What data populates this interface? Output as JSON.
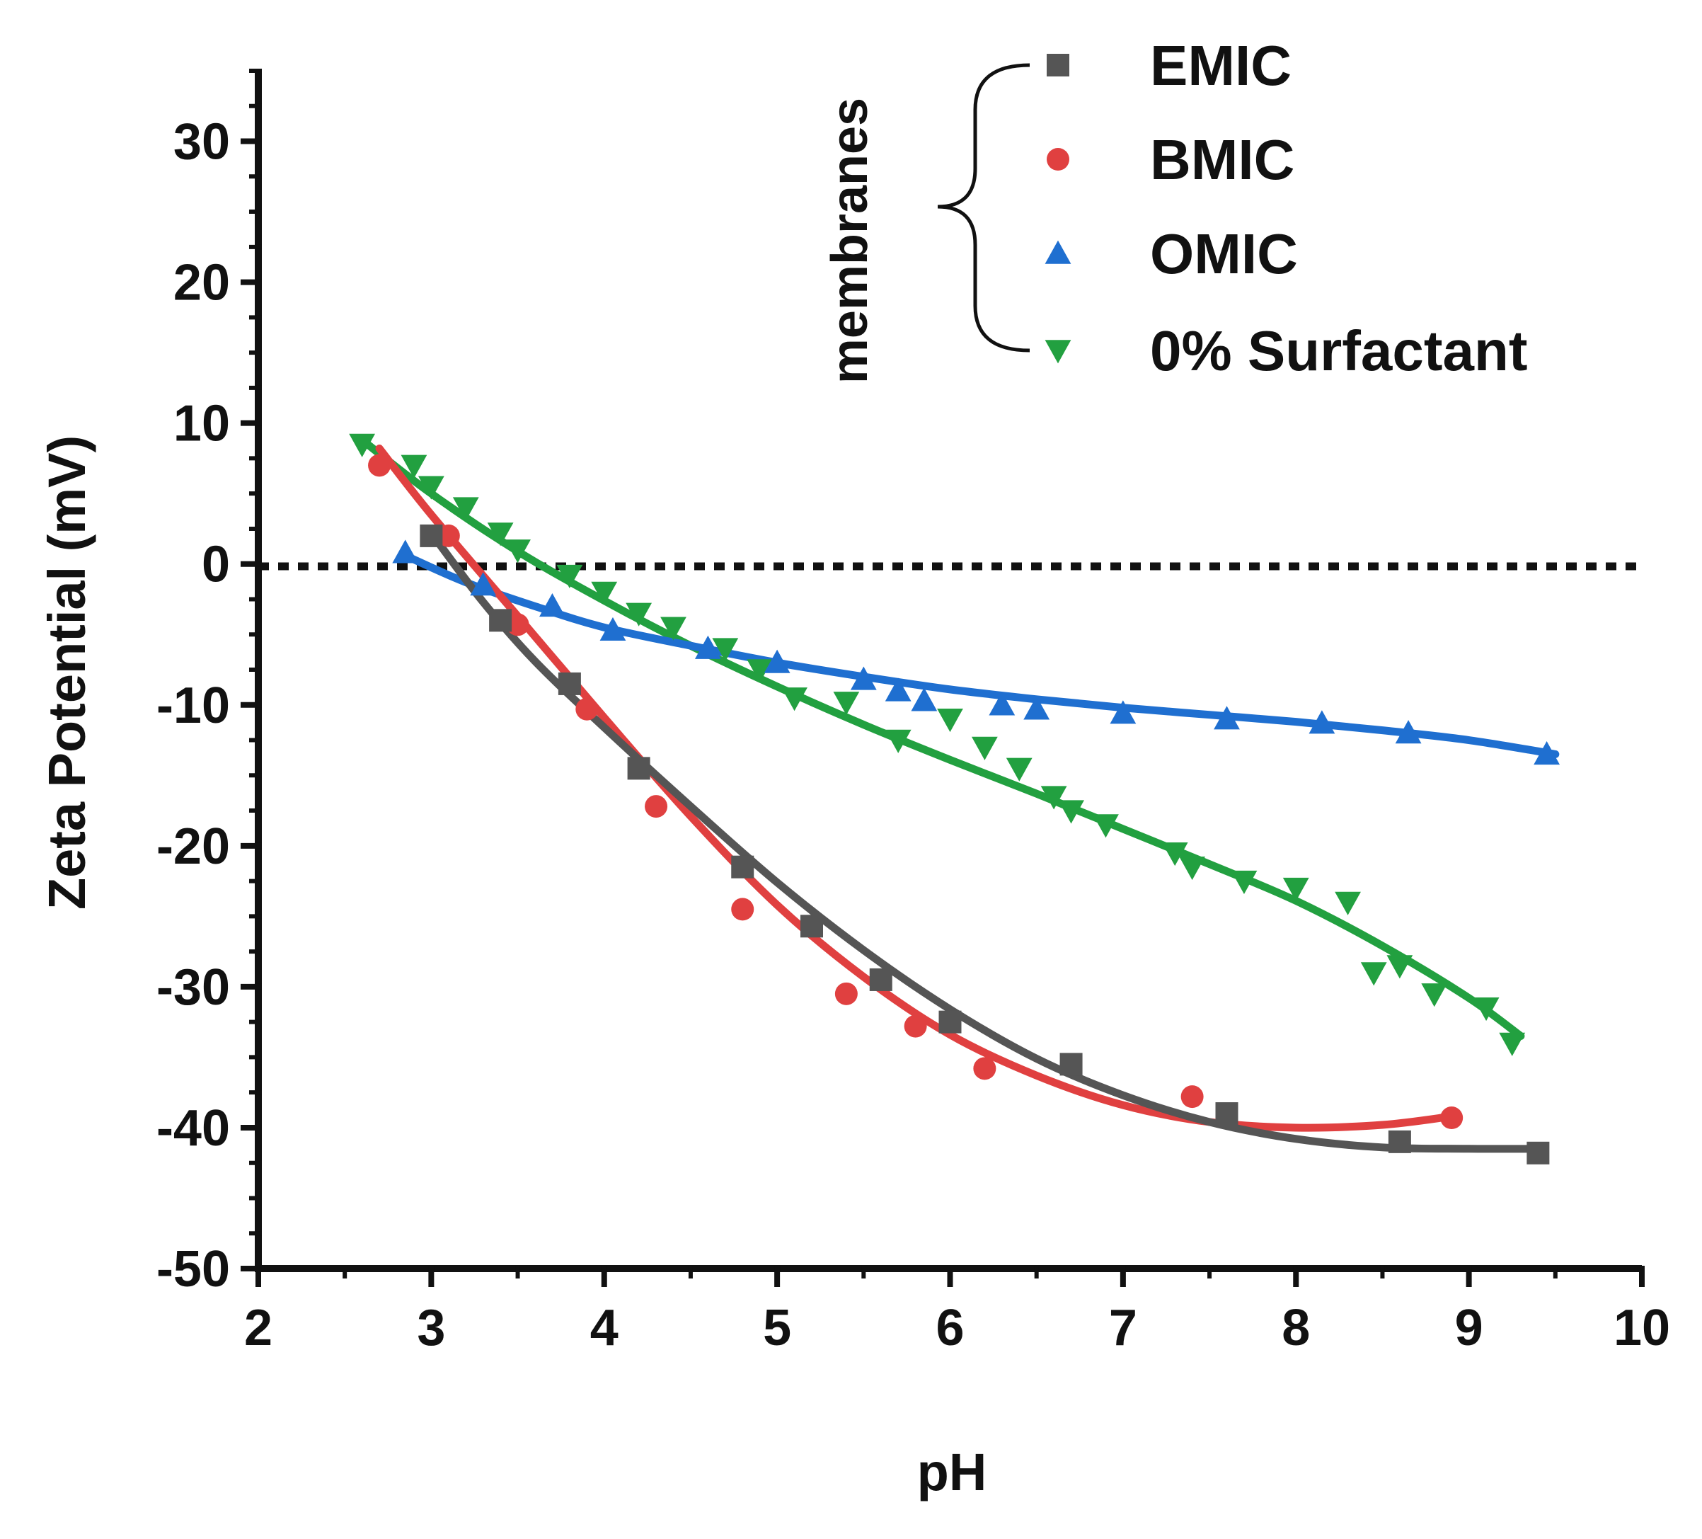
{
  "chart_data": {
    "type": "scatter",
    "title": "",
    "xlabel": "pH",
    "ylabel": "Zeta Potential (mV)",
    "xlim": [
      2,
      10
    ],
    "ylim": [
      -50,
      35
    ],
    "x_ticks": [
      2,
      3,
      4,
      5,
      6,
      7,
      8,
      9,
      10
    ],
    "x_tick_labels": [
      "2",
      "3",
      "4",
      "5",
      "6",
      "7",
      "8",
      "9",
      "10"
    ],
    "y_ticks": [
      -50,
      -40,
      -30,
      -20,
      -10,
      0,
      10,
      20,
      30
    ],
    "y_tick_labels": [
      "-50",
      "-40",
      "-30",
      "-20",
      "-10",
      "0",
      "10",
      "20",
      "30"
    ],
    "grid": false,
    "reference_line": {
      "y": 0,
      "style": "dotted"
    },
    "legend": {
      "position": "top-right",
      "group_label": "membranes",
      "group_bracket_covers": [
        "EMIC",
        "BMIC",
        "OMIC",
        "0% Surfactant"
      ]
    },
    "series": [
      {
        "name": "EMIC",
        "marker": "square",
        "color": "#555555",
        "points": [
          [
            3.0,
            2
          ],
          [
            3.4,
            -4
          ],
          [
            3.8,
            -8.5
          ],
          [
            4.2,
            -14.5
          ],
          [
            4.8,
            -21.5
          ],
          [
            5.2,
            -25.7
          ],
          [
            5.6,
            -29.5
          ],
          [
            6.0,
            -32.5
          ],
          [
            6.7,
            -35.5
          ],
          [
            7.6,
            -39
          ],
          [
            8.6,
            -41
          ],
          [
            9.4,
            -41.8
          ]
        ],
        "fit": [
          [
            3.0,
            2.2
          ],
          [
            3.3,
            -2.7
          ],
          [
            3.6,
            -6.9
          ],
          [
            4.0,
            -11.6
          ],
          [
            4.5,
            -17.2
          ],
          [
            5.0,
            -22.6
          ],
          [
            5.5,
            -27.4
          ],
          [
            6.0,
            -31.6
          ],
          [
            6.5,
            -35.1
          ],
          [
            7.0,
            -37.7
          ],
          [
            7.5,
            -39.6
          ],
          [
            8.0,
            -40.8
          ],
          [
            8.5,
            -41.4
          ],
          [
            9.0,
            -41.5
          ],
          [
            9.4,
            -41.5
          ]
        ]
      },
      {
        "name": "BMIC",
        "marker": "circle",
        "color": "#e04040",
        "points": [
          [
            2.7,
            7
          ],
          [
            3.1,
            2
          ],
          [
            3.5,
            -4.3
          ],
          [
            3.9,
            -10.3
          ],
          [
            4.3,
            -17.2
          ],
          [
            4.8,
            -24.5
          ],
          [
            5.4,
            -30.5
          ],
          [
            5.8,
            -32.8
          ],
          [
            6.2,
            -35.8
          ],
          [
            7.4,
            -37.8
          ],
          [
            8.9,
            -39.3
          ]
        ],
        "fit": [
          [
            2.7,
            8.2
          ],
          [
            3.0,
            3.5
          ],
          [
            3.5,
            -3.7
          ],
          [
            4.0,
            -10.9
          ],
          [
            4.5,
            -17.9
          ],
          [
            5.0,
            -24.2
          ],
          [
            5.5,
            -29.3
          ],
          [
            6.0,
            -33.4
          ],
          [
            6.5,
            -36.3
          ],
          [
            7.0,
            -38.4
          ],
          [
            7.5,
            -39.6
          ],
          [
            8.0,
            -40.0
          ],
          [
            8.5,
            -39.8
          ],
          [
            8.9,
            -39.2
          ]
        ]
      },
      {
        "name": "OMIC",
        "marker": "triangle-up",
        "color": "#1f6fd0",
        "points": [
          [
            2.85,
            0.8
          ],
          [
            3.3,
            -1.5
          ],
          [
            3.7,
            -3
          ],
          [
            4.05,
            -4.7
          ],
          [
            4.6,
            -6
          ],
          [
            5.0,
            -7
          ],
          [
            5.5,
            -8.2
          ],
          [
            5.7,
            -9
          ],
          [
            5.85,
            -9.7
          ],
          [
            6.3,
            -10
          ],
          [
            6.5,
            -10.3
          ],
          [
            7.0,
            -10.6
          ],
          [
            7.6,
            -11
          ],
          [
            8.15,
            -11.3
          ],
          [
            8.65,
            -12
          ],
          [
            9.45,
            -13.5
          ]
        ],
        "fit": [
          [
            2.85,
            0.6
          ],
          [
            3.2,
            -1.3
          ],
          [
            3.6,
            -3.0
          ],
          [
            4.0,
            -4.5
          ],
          [
            4.5,
            -5.8
          ],
          [
            5.0,
            -7.0
          ],
          [
            5.5,
            -8.0
          ],
          [
            6.0,
            -8.9
          ],
          [
            6.5,
            -9.6
          ],
          [
            7.0,
            -10.2
          ],
          [
            7.5,
            -10.7
          ],
          [
            8.0,
            -11.2
          ],
          [
            8.5,
            -11.8
          ],
          [
            9.0,
            -12.5
          ],
          [
            9.5,
            -13.5
          ]
        ]
      },
      {
        "name": "0% Surfactant",
        "marker": "triangle-down",
        "color": "#22a040",
        "points": [
          [
            2.6,
            8.5
          ],
          [
            2.9,
            7
          ],
          [
            3.0,
            5.5
          ],
          [
            3.2,
            4
          ],
          [
            3.4,
            2.2
          ],
          [
            3.5,
            1
          ],
          [
            3.8,
            -0.8
          ],
          [
            4.0,
            -2
          ],
          [
            4.2,
            -3.5
          ],
          [
            4.4,
            -4.5
          ],
          [
            4.7,
            -6
          ],
          [
            4.9,
            -7.5
          ],
          [
            5.1,
            -9.5
          ],
          [
            5.4,
            -9.8
          ],
          [
            5.7,
            -12.5
          ],
          [
            6.0,
            -11
          ],
          [
            6.2,
            -13
          ],
          [
            6.4,
            -14.5
          ],
          [
            6.6,
            -16.5
          ],
          [
            6.7,
            -17.5
          ],
          [
            6.9,
            -18.5
          ],
          [
            7.3,
            -20.5
          ],
          [
            7.4,
            -21.5
          ],
          [
            7.7,
            -22.5
          ],
          [
            8.0,
            -23
          ],
          [
            8.3,
            -24
          ],
          [
            8.45,
            -29
          ],
          [
            8.6,
            -28.5
          ],
          [
            8.8,
            -30.5
          ],
          [
            9.1,
            -31.5
          ],
          [
            9.25,
            -34
          ]
        ],
        "fit": [
          [
            2.6,
            8.8
          ],
          [
            3.0,
            5.0
          ],
          [
            3.5,
            0.9
          ],
          [
            4.0,
            -2.6
          ],
          [
            4.5,
            -5.8
          ],
          [
            5.0,
            -8.7
          ],
          [
            5.5,
            -11.4
          ],
          [
            6.0,
            -13.9
          ],
          [
            6.5,
            -16.3
          ],
          [
            7.0,
            -18.8
          ],
          [
            7.5,
            -21.3
          ],
          [
            8.0,
            -23.9
          ],
          [
            8.5,
            -27.1
          ],
          [
            9.0,
            -30.8
          ],
          [
            9.3,
            -33.5
          ]
        ]
      }
    ]
  }
}
